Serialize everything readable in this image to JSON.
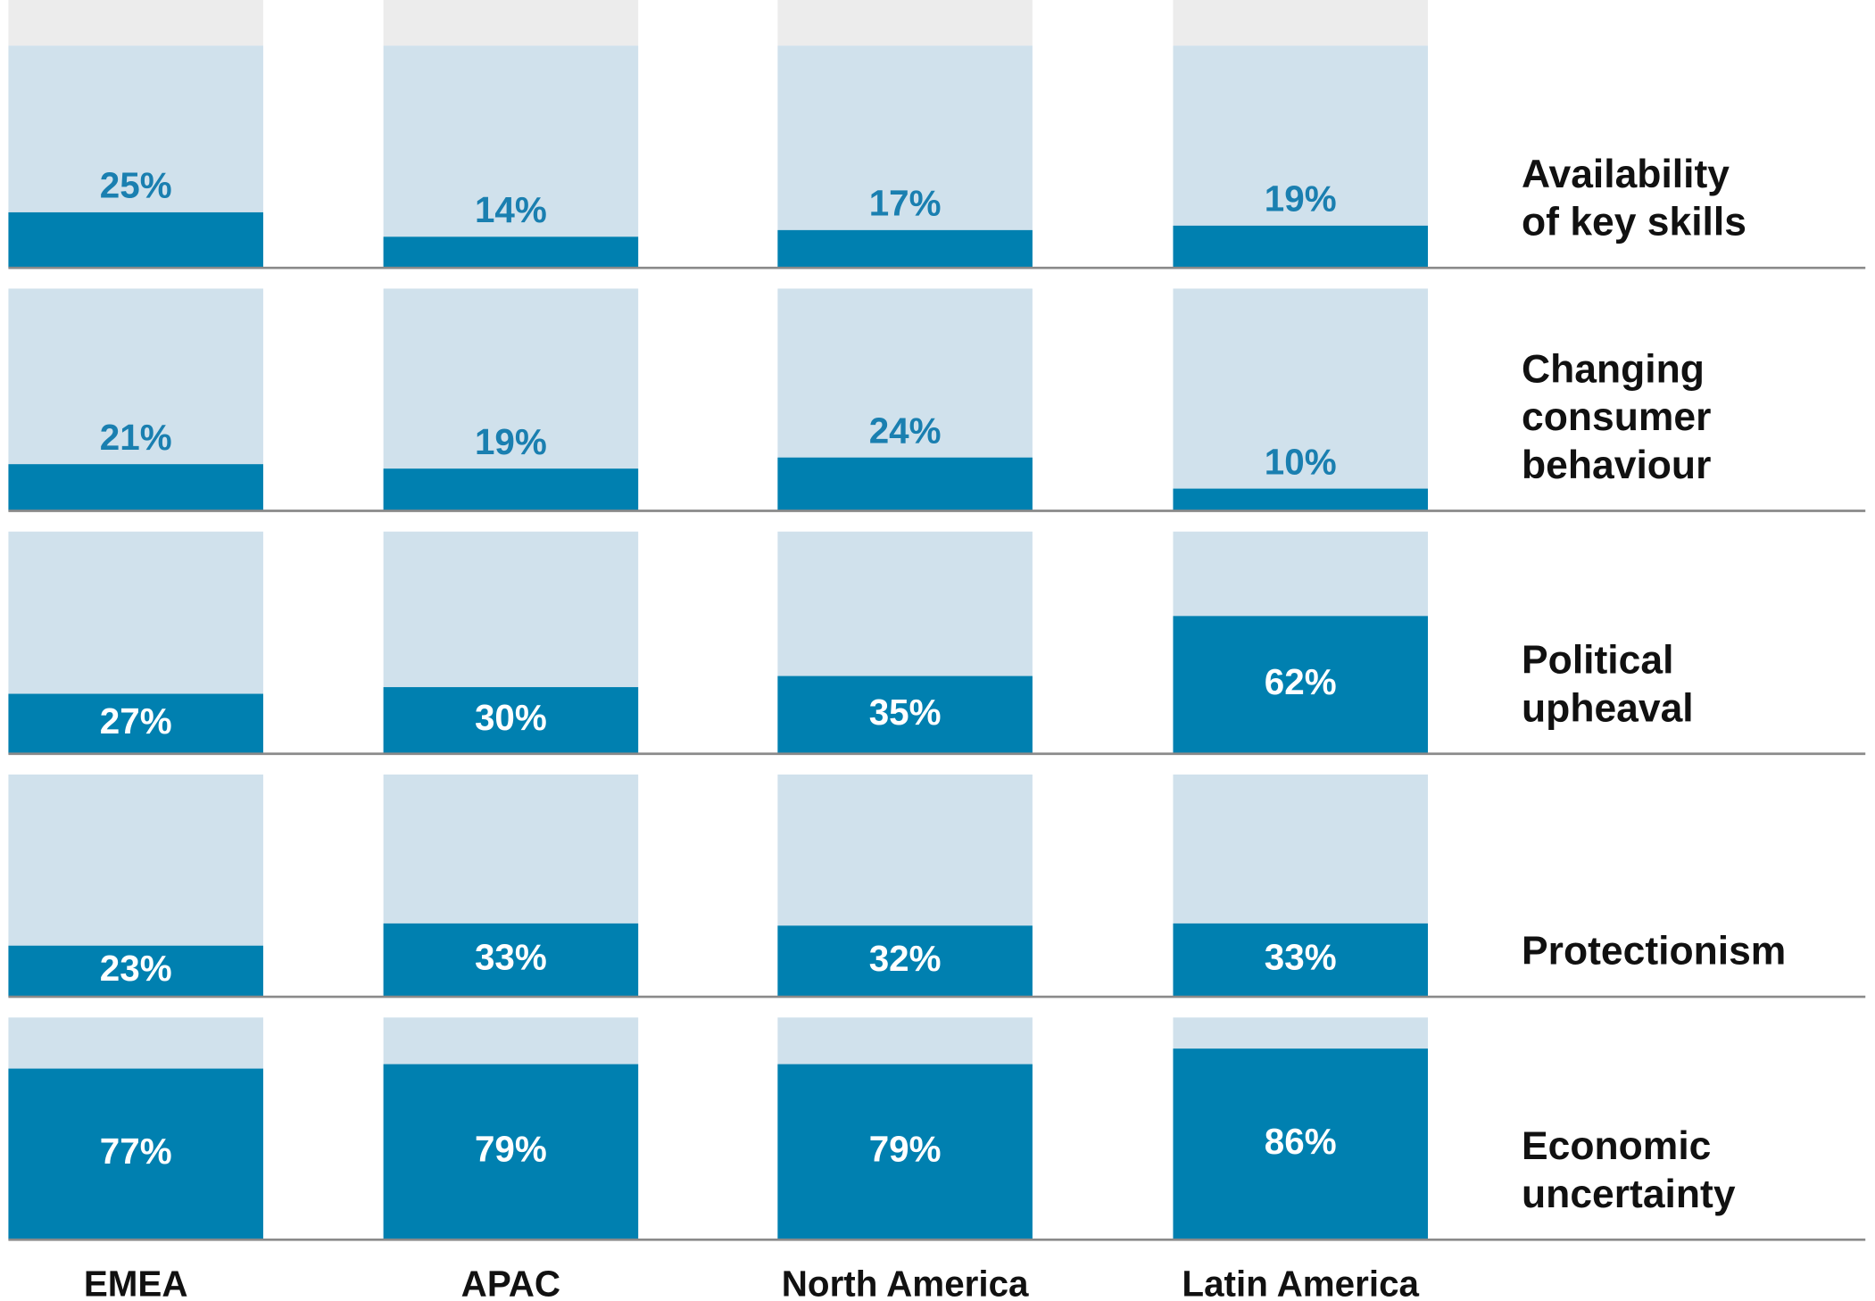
{
  "chart_data": {
    "type": "bar",
    "categories": [
      "EMEA",
      "APAC",
      "North America",
      "Latin America"
    ],
    "ylim": [
      0,
      100
    ],
    "series": [
      {
        "name": "Availability of key skills",
        "color": "#0080b0",
        "values": [
          25,
          14,
          17,
          19
        ],
        "value_labels": [
          "25%",
          "14%",
          "17%",
          "19%"
        ]
      },
      {
        "name": "Changing consumer behaviour",
        "color": "#0080b0",
        "values": [
          21,
          19,
          24,
          10
        ],
        "value_labels": [
          "21%",
          "19%",
          "24%",
          "10%"
        ]
      },
      {
        "name": "Political upheaval",
        "color": "#0080b0",
        "values": [
          27,
          30,
          35,
          62
        ],
        "value_labels": [
          "27%",
          "30%",
          "35%",
          "62%"
        ]
      },
      {
        "name": "Protectionism",
        "color": "#0080b0",
        "values": [
          23,
          33,
          32,
          33
        ],
        "value_labels": [
          "23%",
          "33%",
          "32%",
          "33%"
        ]
      },
      {
        "name": "Economic uncertainty",
        "color": "#0080b0",
        "values": [
          77,
          79,
          79,
          86
        ],
        "value_labels": [
          "77%",
          "79%",
          "79%",
          "86%"
        ]
      }
    ],
    "background_color": "#d0e1ec"
  }
}
